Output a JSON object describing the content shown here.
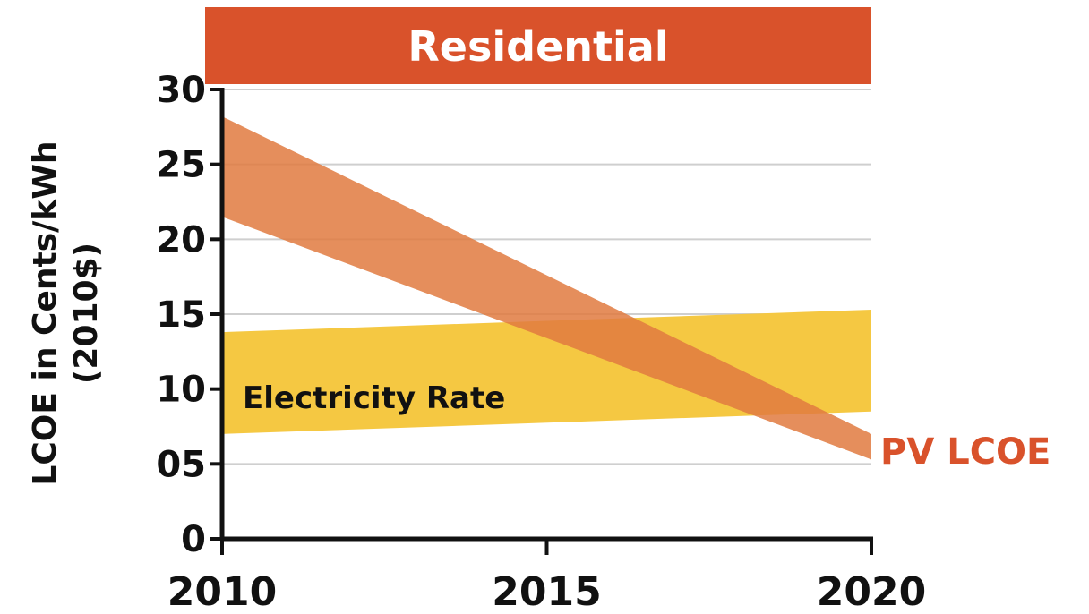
{
  "chart_data": {
    "type": "area",
    "title": "Residential",
    "xlabel": "",
    "ylabel": [
      "LCOE in Cents/kWh",
      "(2010$)"
    ],
    "xlim": [
      2010,
      2020
    ],
    "ylim": [
      0,
      30
    ],
    "x_ticks": [
      "2010",
      "2015",
      "2020"
    ],
    "y_ticks": [
      {
        "value": 0,
        "label": "0"
      },
      {
        "value": 5,
        "label": "05"
      },
      {
        "value": 10,
        "label": "10"
      },
      {
        "value": 15,
        "label": "15"
      },
      {
        "value": 20,
        "label": "20"
      },
      {
        "value": 25,
        "label": "25"
      },
      {
        "value": 30,
        "label": "30"
      }
    ],
    "grid": true,
    "series": [
      {
        "name": "Electricity Rate",
        "type": "band",
        "color": "#F5C842",
        "x": [
          2010,
          2020
        ],
        "lower": [
          7.0,
          8.5
        ],
        "upper": [
          13.8,
          15.3
        ]
      },
      {
        "name": "PV LCOE",
        "type": "band",
        "color": "#E07A40",
        "opacity": 0.85,
        "x": [
          2010,
          2020
        ],
        "lower": [
          21.5,
          5.3
        ],
        "upper": [
          28.2,
          7.0
        ]
      }
    ],
    "colors": {
      "title_bar": "#D9522B",
      "pv_label": "#D9522B",
      "rate_label": "#111111"
    }
  }
}
